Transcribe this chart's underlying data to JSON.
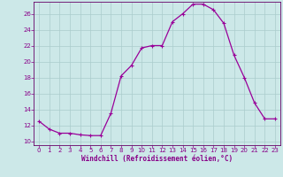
{
  "x": [
    0,
    1,
    2,
    3,
    4,
    5,
    6,
    7,
    8,
    9,
    10,
    11,
    12,
    13,
    14,
    15,
    16,
    17,
    18,
    19,
    20,
    21,
    22,
    23
  ],
  "y": [
    12.5,
    11.5,
    11.0,
    11.0,
    10.8,
    10.7,
    10.7,
    13.5,
    18.2,
    19.5,
    21.7,
    22.0,
    22.0,
    25.0,
    26.0,
    27.2,
    27.2,
    26.5,
    24.8,
    20.8,
    18.0,
    14.8,
    12.8,
    12.8
  ],
  "line_color": "#990099",
  "marker": "+",
  "marker_size": 3,
  "bg_color": "#cce8e8",
  "grid_color": "#aacccc",
  "xlabel": "Windchill (Refroidissement éolien,°C)",
  "xlim": [
    -0.5,
    23.5
  ],
  "ylim": [
    9.5,
    27.5
  ],
  "yticks": [
    10,
    12,
    14,
    16,
    18,
    20,
    22,
    24,
    26
  ],
  "xticks": [
    0,
    1,
    2,
    3,
    4,
    5,
    6,
    7,
    8,
    9,
    10,
    11,
    12,
    13,
    14,
    15,
    16,
    17,
    18,
    19,
    20,
    21,
    22,
    23
  ],
  "tick_color": "#880088",
  "tick_fontsize": 5,
  "xlabel_fontsize": 5.5,
  "axis_color": "#660066",
  "line_width": 0.9,
  "marker_edge_width": 0.8
}
